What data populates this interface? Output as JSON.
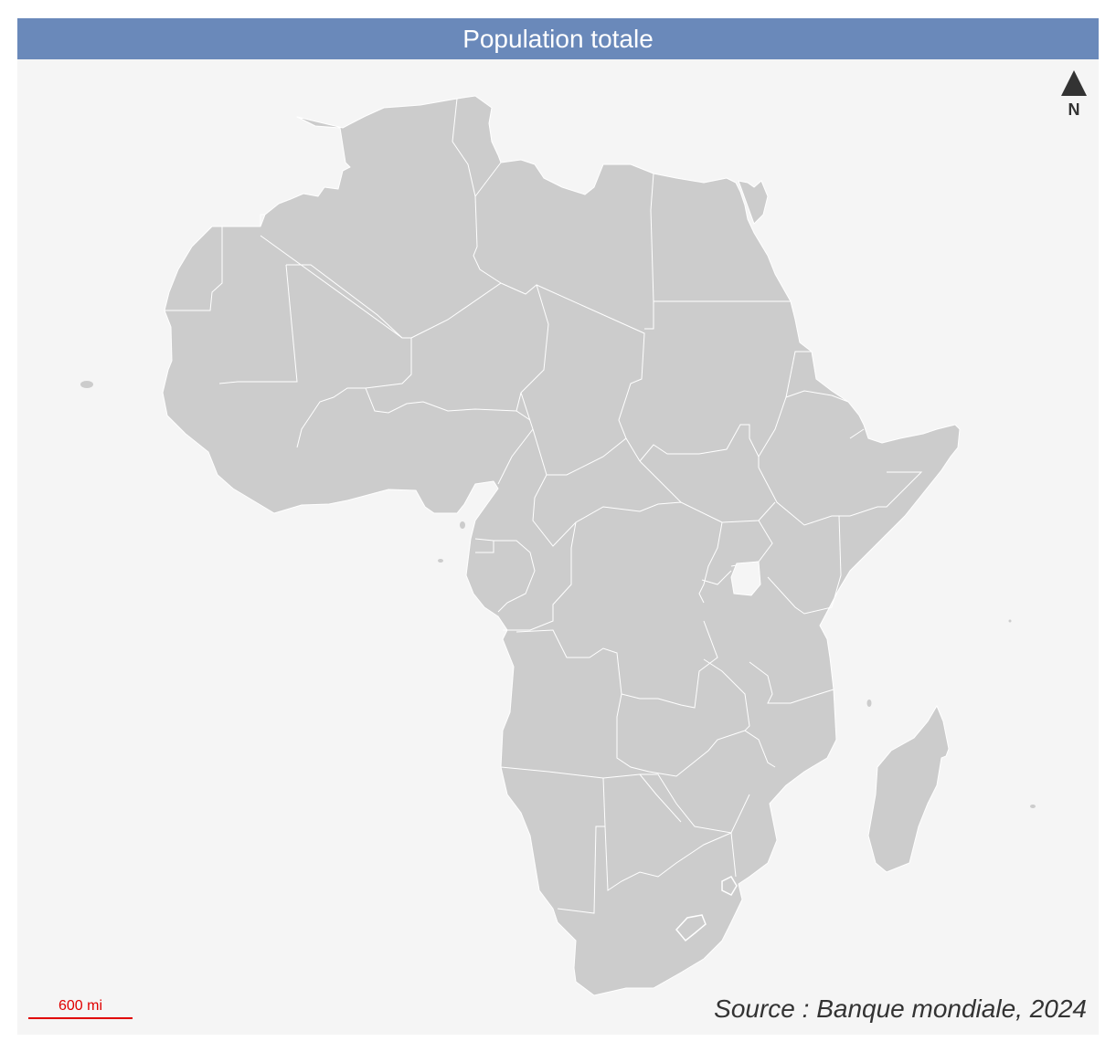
{
  "title": "Population totale",
  "north_arrow": {
    "label": "N",
    "icon": "north-arrow-icon"
  },
  "scale_bar": {
    "label": "600 mi",
    "color": "#e00000"
  },
  "source": "Source : Banque mondiale, 2024",
  "colors": {
    "title_bar": "#6a89ba",
    "background": "#f5f5f5",
    "land": "#cccccc",
    "borders": "#ffffff"
  }
}
